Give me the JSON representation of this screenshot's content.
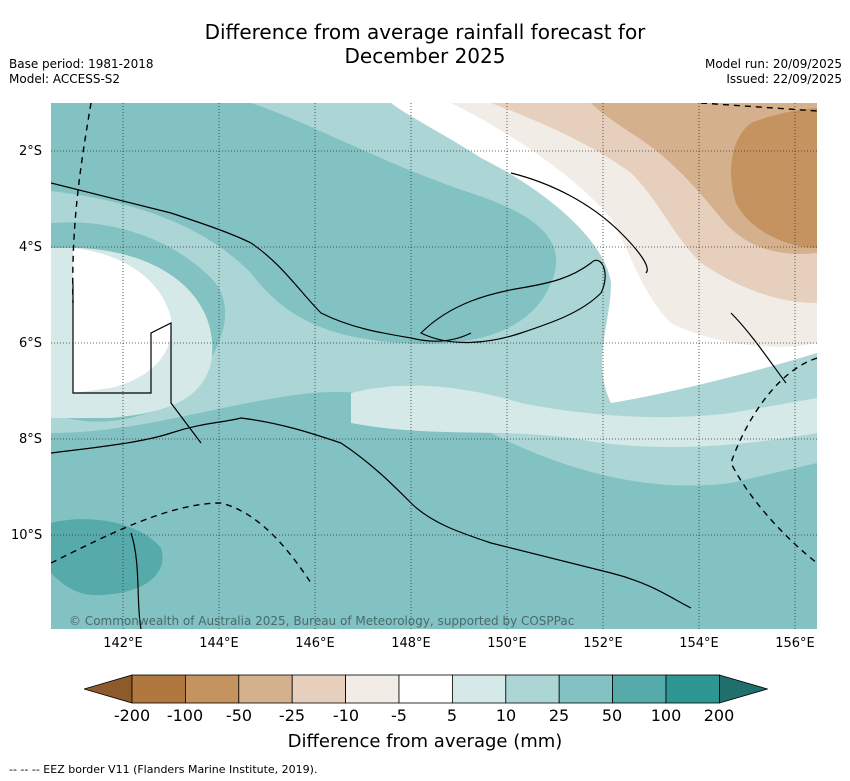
{
  "title_line1": "Difference from average rainfall forecast for",
  "title_line2": "December 2025",
  "base_period": "Base period: 1981-2018",
  "model": "Model: ACCESS-S2",
  "model_run": "Model run: 20/09/2025",
  "issued": "Issued: 22/09/2025",
  "lat_labels": [
    "2°S",
    "4°S",
    "6°S",
    "8°S",
    "10°S"
  ],
  "lon_labels": [
    "142°E",
    "144°E",
    "146°E",
    "148°E",
    "150°E",
    "152°E",
    "154°E",
    "156°E"
  ],
  "colorbar": {
    "labels": [
      "-200",
      "-100",
      "-50",
      "-25",
      "-10",
      "-5",
      "5",
      "10",
      "25",
      "50",
      "100",
      "200"
    ],
    "colors": [
      "#8c5a2b",
      "#b0773e",
      "#c4935f",
      "#d5b08c",
      "#e6d0bd",
      "#f2ece7",
      "#ffffff",
      "#d5e9e8",
      "#acd6d6",
      "#83c2c2",
      "#57aaaa",
      "#2e9693",
      "#1f6f6c"
    ],
    "title": "Difference from average (mm)"
  },
  "copyright": "© Commonwealth of Australia 2025, Bureau of Meteorology, supported by COSPPac",
  "footnote": "-- --  -- EEZ border V11 (Flanders Marine Institute, 2019)."
}
